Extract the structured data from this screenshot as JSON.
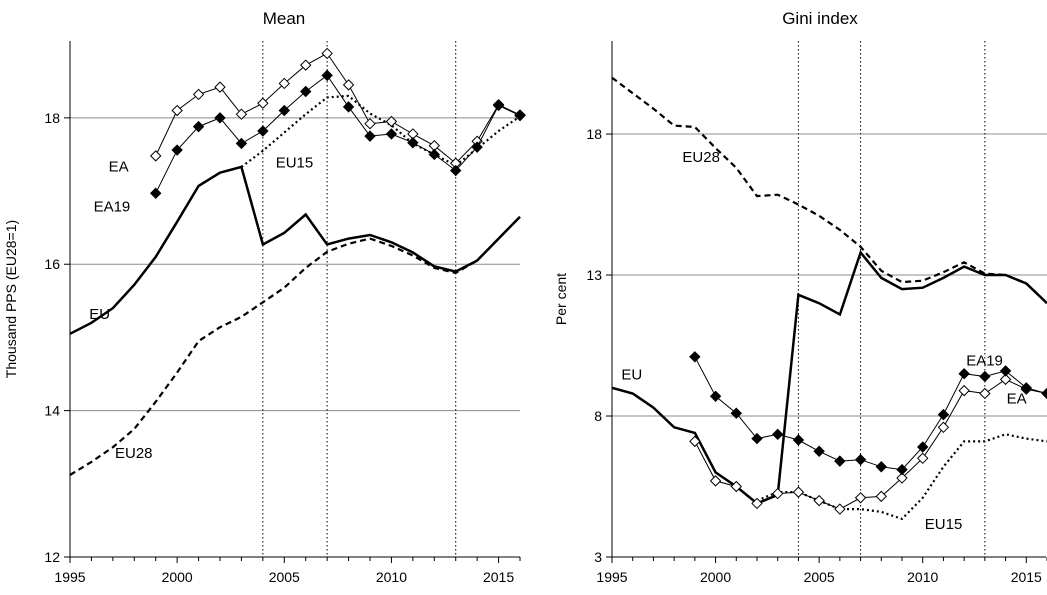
{
  "chart_data": [
    {
      "type": "line",
      "title": "Mean",
      "ylabel": "Thousand PPS (EU28=1)",
      "xlabel": "",
      "xlim": [
        1995,
        2016
      ],
      "ylim": [
        12,
        19.05
      ],
      "xticks": [
        "1995",
        "2000",
        "2005",
        "2010",
        "2015"
      ],
      "yticks": [
        "12",
        "14",
        "16",
        "18"
      ],
      "ytick_values": [
        12,
        14,
        16,
        18
      ],
      "xtick_values": [
        1995,
        2000,
        2005,
        2010,
        2015
      ],
      "grid": "horizontal",
      "vlines": [
        2004,
        2007,
        2013
      ],
      "series": [
        {
          "name": "EU",
          "style": "solid-thick",
          "points": [
            [
              1995,
              15.05
            ],
            [
              1996,
              15.2
            ],
            [
              1997,
              15.4
            ],
            [
              1998,
              15.72
            ],
            [
              1999,
              16.1
            ],
            [
              2000,
              16.58
            ],
            [
              2001,
              17.07
            ],
            [
              2002,
              17.25
            ],
            [
              2003,
              17.33
            ],
            [
              2004,
              16.27
            ],
            [
              2005,
              16.43
            ],
            [
              2006,
              16.68
            ],
            [
              2007,
              16.27
            ],
            [
              2008,
              16.35
            ],
            [
              2009,
              16.4
            ],
            [
              2010,
              16.3
            ],
            [
              2011,
              16.16
            ],
            [
              2012,
              15.97
            ],
            [
              2013,
              15.9
            ],
            [
              2014,
              16.05
            ],
            [
              2015,
              16.35
            ],
            [
              2016,
              16.65
            ]
          ]
        },
        {
          "name": "EU28",
          "style": "dashed-thick",
          "points": [
            [
              1995,
              13.12
            ],
            [
              1996,
              13.3
            ],
            [
              1997,
              13.5
            ],
            [
              1998,
              13.75
            ],
            [
              1999,
              14.12
            ],
            [
              2000,
              14.52
            ],
            [
              2001,
              14.95
            ],
            [
              2002,
              15.14
            ],
            [
              2003,
              15.28
            ],
            [
              2004,
              15.48
            ],
            [
              2005,
              15.68
            ],
            [
              2006,
              15.95
            ],
            [
              2007,
              16.17
            ],
            [
              2008,
              16.28
            ],
            [
              2009,
              16.35
            ],
            [
              2010,
              16.25
            ],
            [
              2011,
              16.12
            ],
            [
              2012,
              15.95
            ],
            [
              2013,
              15.88
            ],
            [
              2014,
              16.05
            ],
            [
              2015,
              16.35
            ],
            [
              2016,
              16.65
            ]
          ]
        },
        {
          "name": "EU15",
          "style": "dotted",
          "points": [
            [
              2003,
              17.33
            ],
            [
              2004,
              17.55
            ],
            [
              2005,
              17.8
            ],
            [
              2006,
              18.05
            ],
            [
              2007,
              18.28
            ],
            [
              2008,
              18.3
            ],
            [
              2009,
              18.06
            ],
            [
              2010,
              17.9
            ],
            [
              2011,
              17.65
            ],
            [
              2012,
              17.5
            ],
            [
              2013,
              17.35
            ],
            [
              2014,
              17.58
            ],
            [
              2015,
              17.82
            ],
            [
              2016,
              18.02
            ]
          ]
        },
        {
          "name": "EA",
          "style": "open-diamond",
          "points": [
            [
              1999,
              17.48
            ],
            [
              2000,
              18.1
            ],
            [
              2001,
              18.32
            ],
            [
              2002,
              18.42
            ],
            [
              2003,
              18.05
            ],
            [
              2004,
              18.2
            ],
            [
              2005,
              18.47
            ],
            [
              2006,
              18.72
            ],
            [
              2007,
              18.88
            ],
            [
              2008,
              18.45
            ],
            [
              2009,
              17.92
            ],
            [
              2010,
              17.95
            ],
            [
              2011,
              17.78
            ],
            [
              2012,
              17.62
            ],
            [
              2013,
              17.38
            ],
            [
              2014,
              17.68
            ],
            [
              2015,
              18.18
            ],
            [
              2016,
              18.04
            ]
          ]
        },
        {
          "name": "EA19",
          "style": "filled-diamond",
          "points": [
            [
              1999,
              16.97
            ],
            [
              2000,
              17.56
            ],
            [
              2001,
              17.88
            ],
            [
              2002,
              18.0
            ],
            [
              2003,
              17.65
            ],
            [
              2004,
              17.82
            ],
            [
              2005,
              18.1
            ],
            [
              2006,
              18.36
            ],
            [
              2007,
              18.58
            ],
            [
              2008,
              18.15
            ],
            [
              2009,
              17.75
            ],
            [
              2010,
              17.78
            ],
            [
              2011,
              17.66
            ],
            [
              2012,
              17.5
            ],
            [
              2013,
              17.28
            ],
            [
              2014,
              17.6
            ],
            [
              2015,
              18.17
            ],
            [
              2016,
              18.03
            ]
          ]
        }
      ],
      "annotations": [
        {
          "text": "EA",
          "x": 1996.8,
          "y": 17.27
        },
        {
          "text": "EA19",
          "x": 1996.1,
          "y": 16.72
        },
        {
          "text": "EU15",
          "x": 2004.6,
          "y": 17.32
        },
        {
          "text": "EU",
          "x": 1995.9,
          "y": 15.25
        },
        {
          "text": "EU28",
          "x": 1997.1,
          "y": 13.35
        }
      ]
    },
    {
      "type": "line",
      "title": "Gini index",
      "ylabel": "Per cent",
      "xlabel": "",
      "xlim": [
        1995,
        2016
      ],
      "ylim": [
        3,
        21.3
      ],
      "xticks": [
        "1995",
        "2000",
        "2005",
        "2010",
        "2015"
      ],
      "yticks": [
        "3",
        "8",
        "13",
        "18"
      ],
      "ytick_values": [
        3,
        8,
        13,
        18
      ],
      "xtick_values": [
        1995,
        2000,
        2005,
        2010,
        2015
      ],
      "grid": "horizontal",
      "vlines": [
        2004,
        2007,
        2013
      ],
      "series": [
        {
          "name": "EU",
          "style": "solid-thick",
          "points": [
            [
              1995,
              9.0
            ],
            [
              1996,
              8.8
            ],
            [
              1997,
              8.3
            ],
            [
              1998,
              7.6
            ],
            [
              1999,
              7.4
            ],
            [
              2000,
              6.0
            ],
            [
              2001,
              5.5
            ],
            [
              2002,
              4.9
            ],
            [
              2003,
              5.2
            ],
            [
              2004,
              12.3
            ],
            [
              2005,
              12.0
            ],
            [
              2006,
              11.6
            ],
            [
              2007,
              13.8
            ],
            [
              2008,
              12.9
            ],
            [
              2009,
              12.5
            ],
            [
              2010,
              12.55
            ],
            [
              2011,
              12.9
            ],
            [
              2012,
              13.3
            ],
            [
              2013,
              13.0
            ],
            [
              2014,
              13.0
            ],
            [
              2015,
              12.7
            ],
            [
              2016,
              12.0
            ]
          ]
        },
        {
          "name": "EU28",
          "style": "dashed-thick",
          "points": [
            [
              1995,
              20.0
            ],
            [
              1996,
              19.45
            ],
            [
              1997,
              18.9
            ],
            [
              1998,
              18.3
            ],
            [
              1999,
              18.25
            ],
            [
              2000,
              17.5
            ],
            [
              2001,
              16.8
            ],
            [
              2002,
              15.8
            ],
            [
              2003,
              15.85
            ],
            [
              2004,
              15.5
            ],
            [
              2005,
              15.1
            ],
            [
              2006,
              14.6
            ],
            [
              2007,
              14.0
            ],
            [
              2008,
              13.15
            ],
            [
              2009,
              12.75
            ],
            [
              2010,
              12.8
            ],
            [
              2011,
              13.1
            ],
            [
              2012,
              13.45
            ],
            [
              2013,
              13.05
            ],
            [
              2014,
              13.0
            ],
            [
              2015,
              12.7
            ],
            [
              2016,
              12.0
            ]
          ]
        },
        {
          "name": "EU15",
          "style": "dotted",
          "points": [
            [
              2002,
              5.0
            ],
            [
              2003,
              5.3
            ],
            [
              2004,
              5.3
            ],
            [
              2005,
              5.0
            ],
            [
              2006,
              4.7
            ],
            [
              2007,
              4.7
            ],
            [
              2008,
              4.6
            ],
            [
              2009,
              4.35
            ],
            [
              2010,
              5.1
            ],
            [
              2011,
              6.2
            ],
            [
              2012,
              7.1
            ],
            [
              2013,
              7.1
            ],
            [
              2014,
              7.35
            ],
            [
              2015,
              7.2
            ],
            [
              2016,
              7.1
            ]
          ]
        },
        {
          "name": "EA",
          "style": "open-diamond",
          "points": [
            [
              1999,
              7.1
            ],
            [
              2000,
              5.7
            ],
            [
              2001,
              5.5
            ],
            [
              2002,
              4.9
            ],
            [
              2003,
              5.25
            ],
            [
              2004,
              5.3
            ],
            [
              2005,
              5.0
            ],
            [
              2006,
              4.7
            ],
            [
              2007,
              5.1
            ],
            [
              2008,
              5.15
            ],
            [
              2009,
              5.8
            ],
            [
              2010,
              6.5
            ],
            [
              2011,
              7.6
            ],
            [
              2012,
              8.9
            ],
            [
              2013,
              8.8
            ],
            [
              2014,
              9.3
            ],
            [
              2015,
              8.95
            ],
            [
              2016,
              8.8
            ]
          ]
        },
        {
          "name": "EA19",
          "style": "filled-diamond",
          "points": [
            [
              1999,
              10.1
            ],
            [
              2000,
              8.7
            ],
            [
              2001,
              8.1
            ],
            [
              2002,
              7.2
            ],
            [
              2003,
              7.35
            ],
            [
              2004,
              7.15
            ],
            [
              2005,
              6.75
            ],
            [
              2006,
              6.4
            ],
            [
              2007,
              6.45
            ],
            [
              2008,
              6.2
            ],
            [
              2009,
              6.1
            ],
            [
              2010,
              6.9
            ],
            [
              2011,
              8.05
            ],
            [
              2012,
              9.5
            ],
            [
              2013,
              9.4
            ],
            [
              2014,
              9.6
            ],
            [
              2015,
              9.0
            ],
            [
              2016,
              8.8
            ]
          ]
        }
      ],
      "annotations": [
        {
          "text": "EU28",
          "x": 1998.4,
          "y": 17.0
        },
        {
          "text": "EU",
          "x": 1995.45,
          "y": 9.3
        },
        {
          "text": "EA19",
          "x": 2012.1,
          "y": 9.8
        },
        {
          "text": "EA",
          "x": 2014.05,
          "y": 8.45
        },
        {
          "text": "EU15",
          "x": 2010.1,
          "y": 4.0
        }
      ]
    }
  ]
}
